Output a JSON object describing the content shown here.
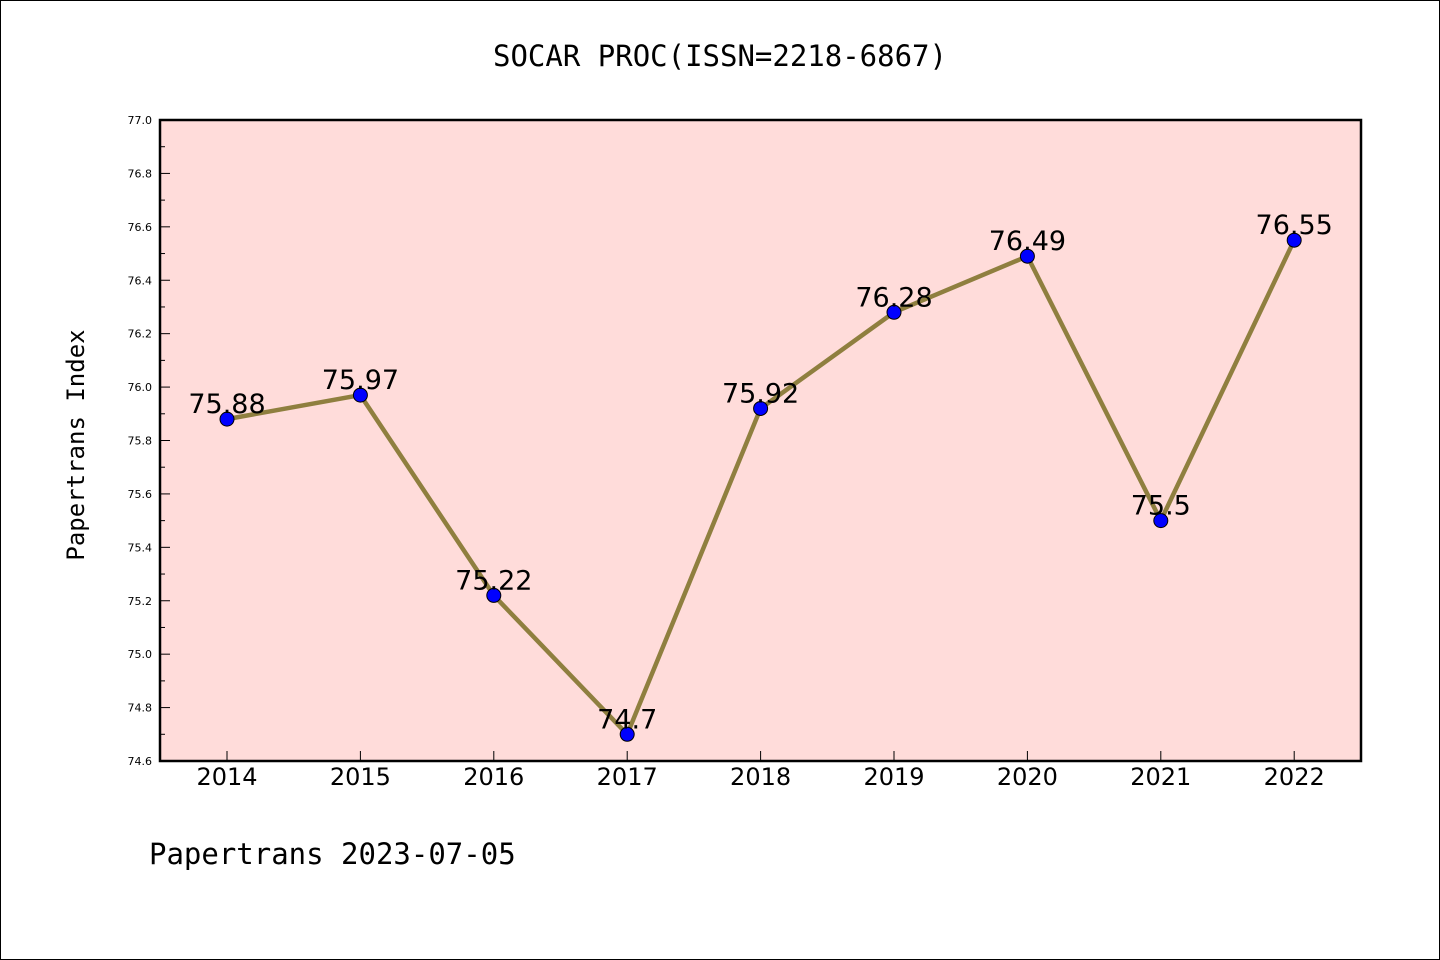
{
  "chart_data": {
    "type": "line",
    "title": "SOCAR PROC(ISSN=2218-6867)",
    "ylabel": "Papertrans Index",
    "xlabel": "",
    "categories": [
      "2014",
      "2015",
      "2016",
      "2017",
      "2018",
      "2019",
      "2020",
      "2021",
      "2022"
    ],
    "series": [
      {
        "values": [
          75.88,
          75.97,
          75.22,
          74.7,
          75.92,
          76.28,
          76.49,
          75.5,
          76.55
        ],
        "labels": [
          "75.88",
          "75.97",
          "75.22",
          "74.7",
          "75.92",
          "76.28",
          "76.49",
          "75.5",
          "76.55"
        ]
      }
    ],
    "ylim": [
      74.6,
      77.0
    ],
    "yticks": [
      "74.6",
      "74.8",
      "75.0",
      "75.2",
      "75.4",
      "75.6",
      "75.8",
      "76.0",
      "76.2",
      "76.4",
      "76.6",
      "76.8",
      "77.0"
    ],
    "grid": false,
    "legend": "none",
    "colors": {
      "plot_background": "#FFDCDA",
      "line": "#8F7F3F",
      "marker": "#0000FF"
    }
  },
  "footer": {
    "text": "Papertrans 2023-07-05"
  }
}
